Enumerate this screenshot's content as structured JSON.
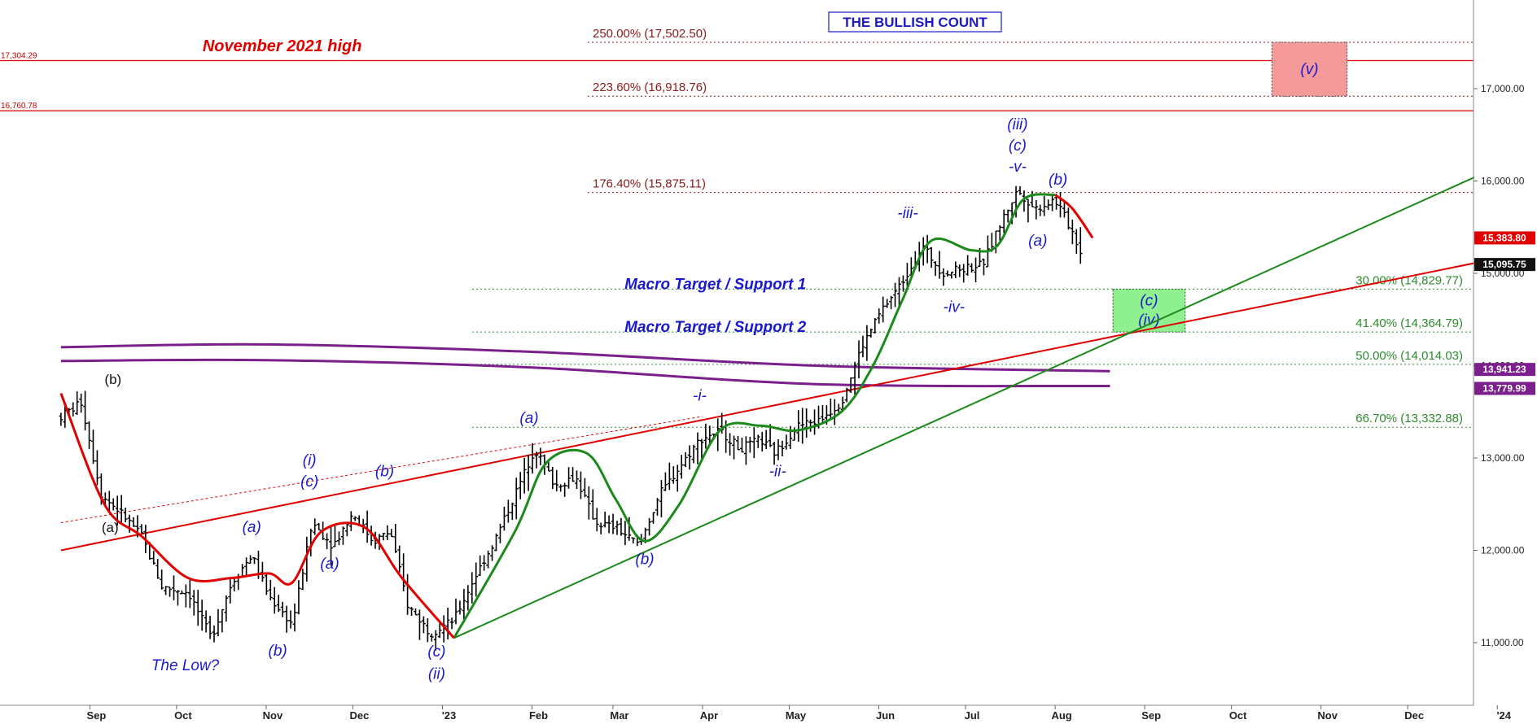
{
  "chart_data": {
    "type": "ohlc",
    "title": "THE BULLISH COUNT",
    "x_axis": {
      "ticks": [
        "Sep",
        "Oct",
        "Nov",
        "Dec",
        "'23",
        "Feb",
        "Mar",
        "Apr",
        "May",
        "Jun",
        "Jul",
        "Aug",
        "Sep",
        "Oct",
        "Nov",
        "Dec",
        "'24"
      ]
    },
    "y_axis": {
      "ticks": [
        "11,000.00",
        "12,000.00",
        "13,000.00",
        "14,000.00",
        "15,000.00",
        "16,000.00",
        "17,000.00"
      ],
      "range": [
        10320,
        17900
      ]
    },
    "price_path": [
      [
        "2022-08-22",
        13450
      ],
      [
        "2022-08-29",
        13600
      ],
      [
        "2022-09-05",
        12600
      ],
      [
        "2022-09-12",
        12400
      ],
      [
        "2022-09-19",
        12150
      ],
      [
        "2022-09-26",
        11600
      ],
      [
        "2022-10-05",
        11550
      ],
      [
        "2022-10-13",
        11050
      ],
      [
        "2022-10-20",
        11650
      ],
      [
        "2022-10-27",
        11950
      ],
      [
        "2022-11-02",
        11500
      ],
      [
        "2022-11-10",
        11200
      ],
      [
        "2022-11-17",
        12300
      ],
      [
        "2022-11-24",
        12050
      ],
      [
        "2022-12-01",
        12400
      ],
      [
        "2022-12-08",
        12100
      ],
      [
        "2022-12-14",
        12200
      ],
      [
        "2022-12-20",
        11400
      ],
      [
        "2022-12-28",
        11100
      ],
      [
        "2023-01-05",
        11250
      ],
      [
        "2023-01-12",
        11700
      ],
      [
        "2023-01-19",
        12100
      ],
      [
        "2023-01-26",
        12600
      ],
      [
        "2023-02-02",
        13100
      ],
      [
        "2023-02-09",
        12700
      ],
      [
        "2023-02-16",
        12800
      ],
      [
        "2023-02-23",
        12300
      ],
      [
        "2023-03-02",
        12250
      ],
      [
        "2023-03-10",
        12050
      ],
      [
        "2023-03-17",
        12600
      ],
      [
        "2023-03-24",
        12900
      ],
      [
        "2023-03-31",
        13200
      ],
      [
        "2023-04-07",
        13300
      ],
      [
        "2023-04-14",
        13100
      ],
      [
        "2023-04-21",
        13200
      ],
      [
        "2023-04-26",
        13050
      ],
      [
        "2023-05-04",
        13350
      ],
      [
        "2023-05-11",
        13400
      ],
      [
        "2023-05-19",
        13600
      ],
      [
        "2023-05-26",
        14200
      ],
      [
        "2023-06-02",
        14600
      ],
      [
        "2023-06-09",
        14900
      ],
      [
        "2023-06-16",
        15300
      ],
      [
        "2023-06-23",
        15000
      ],
      [
        "2023-06-30",
        15050
      ],
      [
        "2023-07-07",
        15100
      ],
      [
        "2023-07-14",
        15600
      ],
      [
        "2023-07-19",
        15900
      ],
      [
        "2023-07-25",
        15700
      ],
      [
        "2023-08-01",
        15800
      ],
      [
        "2023-08-07",
        15450
      ],
      [
        "2023-08-11",
        15150
      ]
    ],
    "moving_averages": [
      {
        "name": "green",
        "color": "#1b8a1b",
        "path": [
          [
            "2023-01-05",
            11050
          ],
          [
            "2023-01-26",
            12200
          ],
          [
            "2023-02-06",
            12950
          ],
          [
            "2023-02-20",
            13050
          ],
          [
            "2023-03-02",
            12550
          ],
          [
            "2023-03-12",
            12100
          ],
          [
            "2023-03-24",
            12500
          ],
          [
            "2023-04-07",
            13300
          ],
          [
            "2023-04-21",
            13350
          ],
          [
            "2023-05-04",
            13300
          ],
          [
            "2023-05-19",
            13500
          ],
          [
            "2023-05-30",
            14000
          ],
          [
            "2023-06-09",
            14700
          ],
          [
            "2023-06-19",
            15350
          ],
          [
            "2023-07-03",
            15250
          ],
          [
            "2023-07-12",
            15300
          ],
          [
            "2023-07-21",
            15800
          ],
          [
            "2023-08-01",
            15850
          ]
        ]
      },
      {
        "name": "red",
        "color": "#e00000",
        "path": [
          [
            "2022-08-22",
            13700
          ],
          [
            "2022-09-06",
            12500
          ],
          [
            "2022-09-19",
            12150
          ],
          [
            "2022-10-05",
            11700
          ],
          [
            "2022-10-20",
            11700
          ],
          [
            "2022-11-02",
            11750
          ],
          [
            "2022-11-10",
            11650
          ],
          [
            "2022-11-20",
            12200
          ],
          [
            "2022-12-05",
            12250
          ],
          [
            "2022-12-18",
            11700
          ],
          [
            "2023-01-05",
            11050
          ]
        ]
      },
      {
        "name": "red-recent",
        "color": "#e00000",
        "path": [
          [
            "2023-08-01",
            15850
          ],
          [
            "2023-08-07",
            15700
          ],
          [
            "2023-08-14",
            15383.8
          ]
        ]
      }
    ],
    "purple_bands": [
      {
        "name": "upper",
        "color": "#7a1f8c",
        "path": [
          [
            "2022-08-22",
            14200
          ],
          [
            "2022-11-01",
            14230
          ],
          [
            "2023-02-01",
            14150
          ],
          [
            "2023-05-10",
            14000
          ],
          [
            "2023-08-20",
            13941.23
          ]
        ]
      },
      {
        "name": "lower",
        "color": "#7a1f8c",
        "path": [
          [
            "2022-08-22",
            14050
          ],
          [
            "2022-11-01",
            14060
          ],
          [
            "2023-02-01",
            13980
          ],
          [
            "2023-05-10",
            13800
          ],
          [
            "2023-08-20",
            13779.99
          ]
        ]
      }
    ],
    "trendlines": [
      {
        "name": "red-trendline",
        "color": "#e00000",
        "from": [
          "2022-08-22",
          12000
        ],
        "to": [
          "2024-01-15",
          15250
        ]
      },
      {
        "name": "red-dotted-trendline",
        "color": "#e00000",
        "from": [
          "2022-08-22",
          12300
        ],
        "to": [
          "2023-04-01",
          13450
        ],
        "dashed": true
      },
      {
        "name": "green-trendline",
        "color": "#1b8a1b",
        "from": [
          "2023-01-05",
          11050
        ],
        "to": [
          "2024-01-15",
          16350
        ]
      }
    ],
    "fib_levels": [
      {
        "label": "250.00% (17,502.50)",
        "value": 17502.5,
        "color": "#8b1a1a",
        "side": "left"
      },
      {
        "label": "223.60% (16,918.76)",
        "value": 16918.76,
        "color": "#8b1a1a",
        "side": "left"
      },
      {
        "label": "176.40% (15,875.11)",
        "value": 15875.11,
        "color": "#8b1a1a",
        "side": "left"
      },
      {
        "label": "30.00% (14,829.77)",
        "value": 14829.77,
        "color": "#2e8b2e",
        "side": "right"
      },
      {
        "label": "41.40% (14,364.79)",
        "value": 14364.79,
        "color": "#2e8b2e",
        "side": "right"
      },
      {
        "label": "50.00% (14,014.03)",
        "value": 14014.03,
        "color": "#2e8b2e",
        "side": "right"
      },
      {
        "label": "66.70% (13,332.88)",
        "value": 13332.88,
        "color": "#2e8b2e",
        "side": "right"
      }
    ],
    "horizontal_lines": [
      {
        "value": 17304.29,
        "label": "17,304.29",
        "color": "#e00000"
      },
      {
        "value": 16760.78,
        "label": "16,760.78",
        "color": "#e00000"
      }
    ],
    "price_tags": [
      {
        "value": 15383.8,
        "label": "15,383.80",
        "color": "#e00000"
      },
      {
        "value": 15095.75,
        "label": "15,095.75",
        "color": "#111111"
      },
      {
        "value": 13941.23,
        "label": "13,941.23",
        "color": "#7a1f8c"
      },
      {
        "value": 13779.99,
        "label": "13,779.99",
        "color": "#7a1f8c"
      }
    ],
    "target_boxes": [
      {
        "name": "red-target-box",
        "from": "2023-10-15",
        "to": "2023-11-10",
        "low": 16918.76,
        "high": 17502.5,
        "color": "#f59a9a",
        "labels": [
          "(v)"
        ]
      },
      {
        "name": "green-target-box",
        "from": "2023-08-21",
        "to": "2023-09-15",
        "low": 14364.79,
        "high": 14829.77,
        "color": "#8ff08f",
        "labels": [
          "(c)",
          "(iv)"
        ]
      }
    ],
    "annotations": [
      {
        "text": "November 2021 high",
        "class": "hl",
        "date": "2022-10-10",
        "value": 17404
      },
      {
        "text": "Macro Target / Support 1",
        "class": "macro",
        "date": "2023-03-05",
        "value": 14829.77
      },
      {
        "text": "Macro Target / Support 2",
        "class": "macro",
        "date": "2023-03-05",
        "value": 14364.79
      },
      {
        "text": "The Low?",
        "class": "wave",
        "date": "2022-10-04",
        "value": 10700
      },
      {
        "text": "(b)",
        "class": "wave-black",
        "date": "2022-09-09",
        "value": 13800
      },
      {
        "text": "(a)",
        "class": "wave-black",
        "date": "2022-09-08",
        "value": 12200
      },
      {
        "text": "(a)",
        "class": "wave",
        "date": "2022-10-27",
        "value": 12200
      },
      {
        "text": "(b)",
        "class": "wave",
        "date": "2022-11-05",
        "value": 10860
      },
      {
        "text": "(i)",
        "class": "wave",
        "date": "2022-11-16",
        "value": 12920
      },
      {
        "text": "(c)",
        "class": "wave",
        "date": "2022-11-16",
        "value": 12690
      },
      {
        "text": "(a)",
        "class": "wave",
        "date": "2022-11-23",
        "value": 11800
      },
      {
        "text": "(b)",
        "class": "wave",
        "date": "2022-12-12",
        "value": 12800
      },
      {
        "text": "(c)",
        "class": "wave",
        "date": "2022-12-30",
        "value": 10850
      },
      {
        "text": "(ii)",
        "class": "wave",
        "date": "2022-12-30",
        "value": 10610
      },
      {
        "text": "(a)",
        "class": "wave",
        "date": "2023-01-31",
        "value": 13380
      },
      {
        "text": "(b)",
        "class": "wave",
        "date": "2023-03-12",
        "value": 11850
      },
      {
        "text": "-i-",
        "class": "wave",
        "date": "2023-03-31",
        "value": 13620
      },
      {
        "text": "-ii-",
        "class": "wave",
        "date": "2023-04-27",
        "value": 12800
      },
      {
        "text": "-iii-",
        "class": "wave",
        "date": "2023-06-11",
        "value": 15600
      },
      {
        "text": "-iv-",
        "class": "wave",
        "date": "2023-06-27",
        "value": 14580
      },
      {
        "text": "(iii)",
        "class": "wave",
        "date": "2023-07-19",
        "value": 16560
      },
      {
        "text": "(c)",
        "class": "wave",
        "date": "2023-07-19",
        "value": 16330
      },
      {
        "text": "-v-",
        "class": "wave",
        "date": "2023-07-19",
        "value": 16100
      },
      {
        "text": "(b)",
        "class": "wave",
        "date": "2023-08-02",
        "value": 15960
      },
      {
        "text": "(a)",
        "class": "wave",
        "date": "2023-07-26",
        "value": 15300
      }
    ]
  }
}
